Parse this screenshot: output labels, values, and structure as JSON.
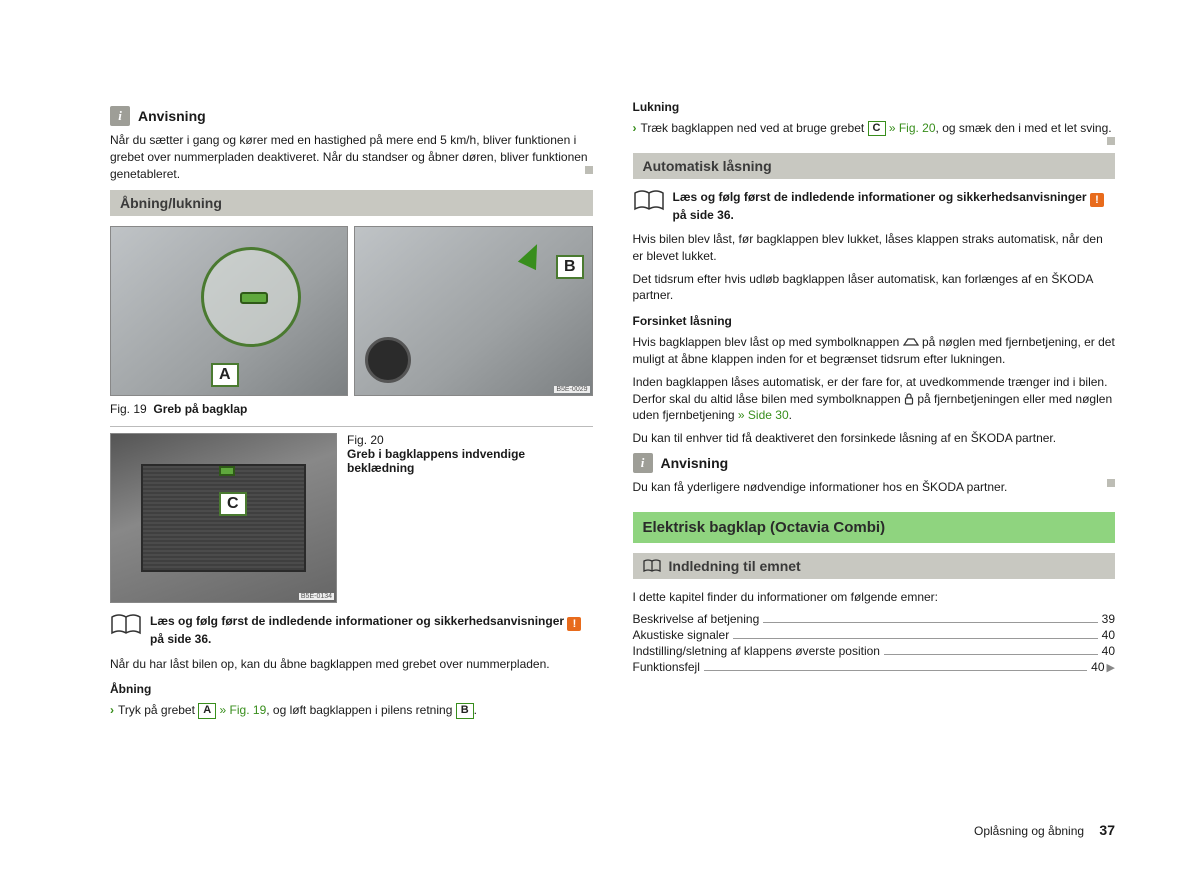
{
  "left": {
    "anvisning": {
      "title": "Anvisning",
      "text": "Når du sætter i gang og kører med en hastighed på mere end 5 km/h, bliver funktionen i grebet over nummerpladen deaktiveret. Når du standser og åbner døren, bliver funktionen genetableret."
    },
    "section1": {
      "title": "Åbning/lukning"
    },
    "fig19": {
      "num": "Fig. 19",
      "text": "Greb på bagklap",
      "code1": "B5E-0029",
      "labelA": "A",
      "labelB": "B"
    },
    "fig20": {
      "num": "Fig. 20",
      "text": "Greb i bagklappens indvendige beklædning",
      "code": "B5E-0134",
      "labelC": "C"
    },
    "readfirst": {
      "text1": "Læs og følg først de indledende informationer og sikkerhedsanvisninger ",
      "text2": " på side 36."
    },
    "para1": "Når du har låst bilen op, kan du åbne bagklappen med grebet over nummerpladen.",
    "abning": {
      "title": "Åbning",
      "pre": "Tryk på grebet ",
      "refA": "A",
      "link1": " » Fig. 19",
      "mid": ", og løft bagklappen i pilens retning ",
      "refB": "B",
      "post": "."
    }
  },
  "right": {
    "lukning": {
      "title": "Lukning",
      "pre": "Træk bagklappen ned ved at bruge grebet ",
      "refC": "C",
      "link": " » Fig. 20",
      "post": ", og smæk den i med et let sving."
    },
    "section2": {
      "title": "Automatisk låsning"
    },
    "readfirst": {
      "text1": "Læs og følg først de indledende informationer og sikkerhedsanvisninger ",
      "text2": " på side 36."
    },
    "para1": "Hvis bilen blev låst, før bagklappen blev lukket, låses klappen straks automatisk, når den er blevet lukket.",
    "para2": "Det tidsrum efter hvis udløb bagklappen låser automatisk, kan forlænges af en ŠKODA partner.",
    "forsinket": {
      "title": "Forsinket låsning",
      "p1a": "Hvis bagklappen blev låst op med symbolknappen ",
      "p1b": " på nøglen med fjernbetjening, er det muligt at åbne klappen inden for et begrænset tidsrum efter lukningen.",
      "p2a": "Inden bagklappen låses automatisk, er der fare for, at uvedkommende trænger ind i bilen. Derfor skal du altid låse bilen med symbolknappen ",
      "p2b": " på fjernbetjeningen eller med nøglen uden fjernbetjening ",
      "link": "» Side 30",
      "p2c": ".",
      "p3": "Du kan til enhver tid få deaktiveret den forsinkede låsning af en ŠKODA partner."
    },
    "anvisning": {
      "title": "Anvisning",
      "text": "Du kan få yderligere nødvendige informationer hos en ŠKODA partner."
    },
    "greenSection": {
      "title": "Elektrisk bagklap (Octavia Combi)"
    },
    "topic": {
      "title": "Indledning til emnet"
    },
    "topicIntro": "I dette kapitel finder du informationer om følgende emner:",
    "toc": [
      {
        "label": "Beskrivelse af betjening",
        "page": "39"
      },
      {
        "label": "Akustiske signaler",
        "page": "40"
      },
      {
        "label": "Indstilling/sletning af klappens øverste position",
        "page": "40"
      },
      {
        "label": "Funktionsfejl",
        "page": "40",
        "arrow": true
      }
    ]
  },
  "footer": {
    "text": "Oplåsning og åbning",
    "page": "37"
  },
  "colors": {
    "green": "#388e1c",
    "barGrey": "#c8c8c1",
    "barGreen": "#8fd47f",
    "orange": "#e86b1c"
  }
}
